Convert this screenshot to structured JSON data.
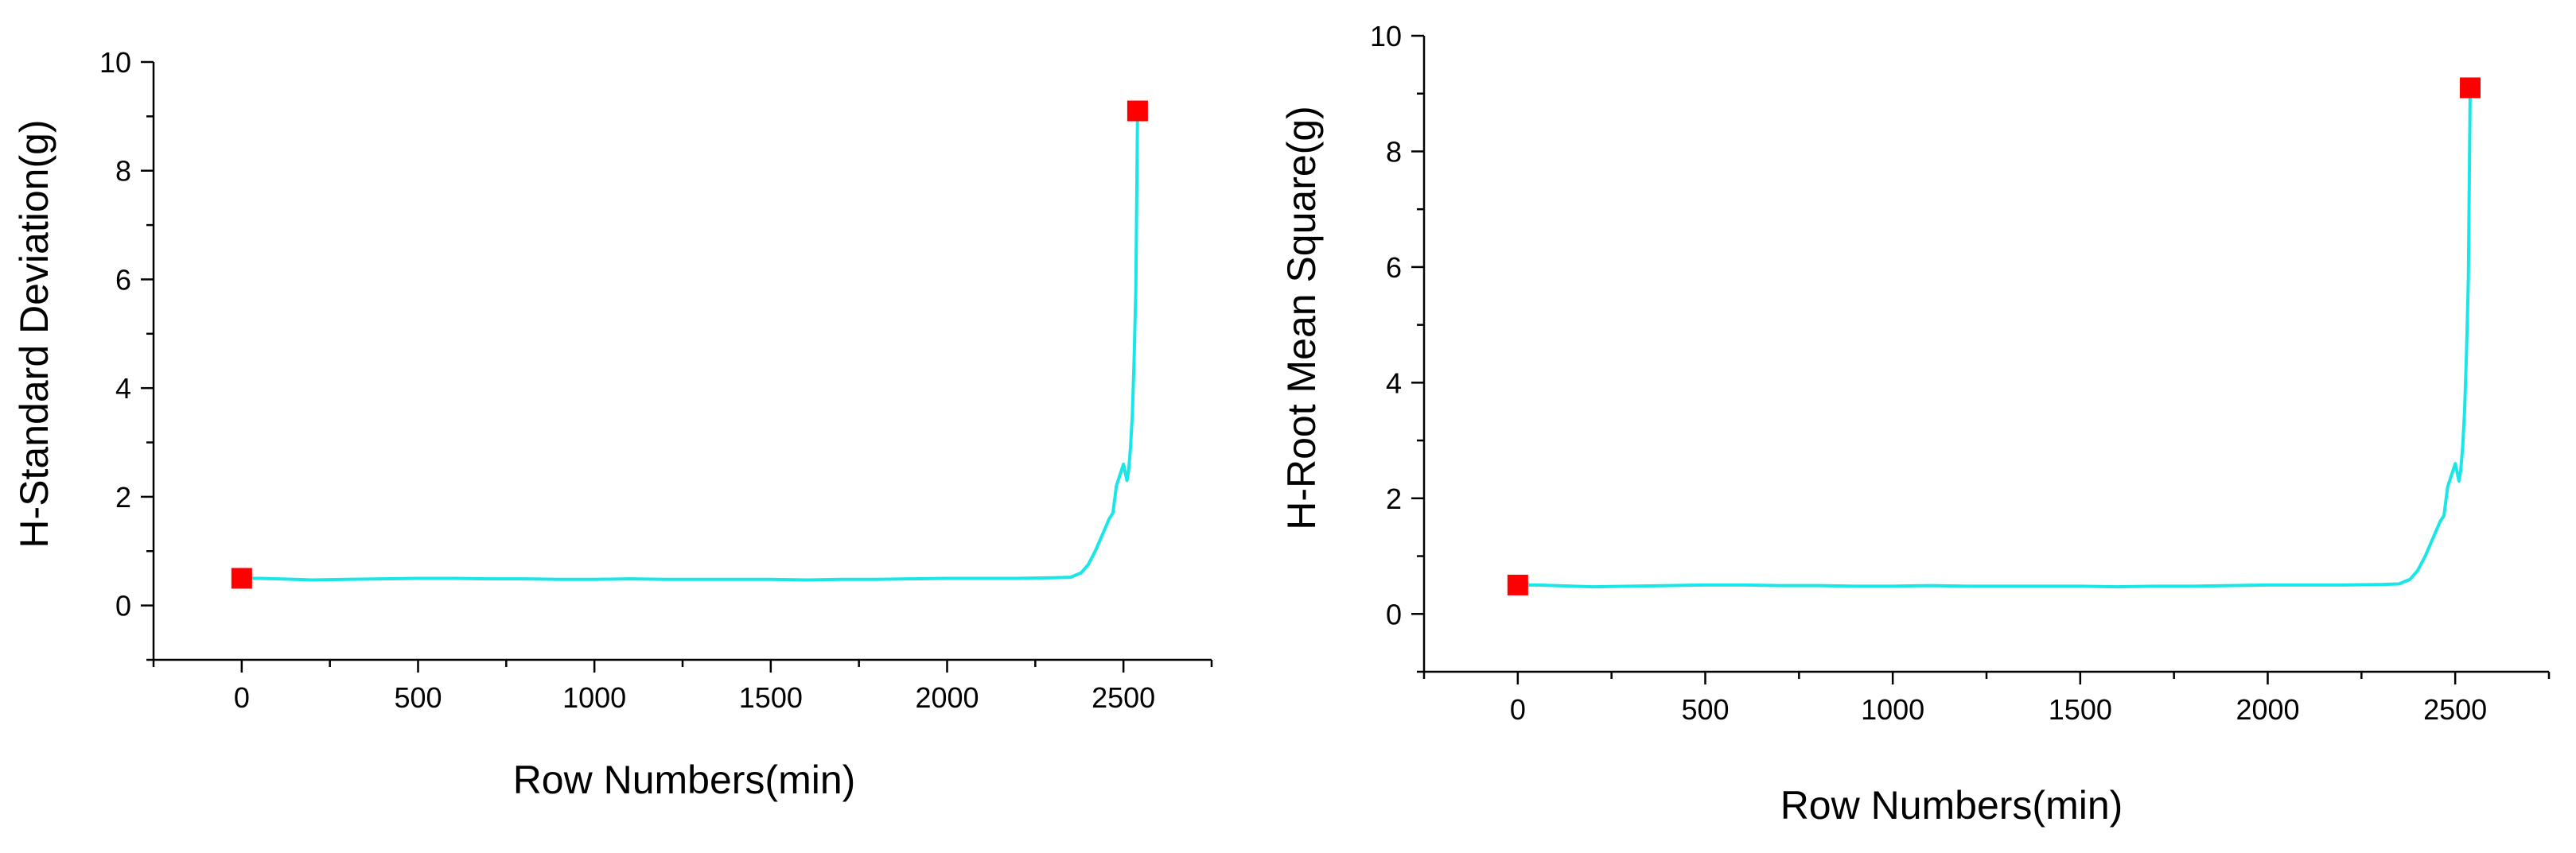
{
  "colors": {
    "series": "#19e6e6",
    "marker": "#ff0000",
    "axis": "#000000"
  },
  "chart_data": [
    {
      "type": "line",
      "xlabel": "Row Numbers(min)",
      "ylabel": "H-Standard Deviation(g)",
      "xlim": [
        -250,
        2750
      ],
      "ylim": [
        -1,
        10
      ],
      "xticks": [
        0,
        500,
        1000,
        1500,
        2000,
        2500
      ],
      "yticks": [
        0,
        2,
        4,
        6,
        8,
        10
      ],
      "grid": false,
      "series": [
        {
          "x": [
            0,
            50,
            100,
            150,
            200,
            300,
            400,
            500,
            600,
            700,
            800,
            900,
            1000,
            1100,
            1200,
            1300,
            1400,
            1500,
            1600,
            1700,
            1800,
            1900,
            2000,
            2100,
            2200,
            2300,
            2350,
            2380,
            2400,
            2420,
            2440,
            2460,
            2470,
            2480,
            2490,
            2500,
            2510,
            2515,
            2520,
            2525,
            2530,
            2535,
            2540
          ],
          "y": [
            0.5,
            0.5,
            0.49,
            0.48,
            0.47,
            0.48,
            0.49,
            0.5,
            0.5,
            0.49,
            0.49,
            0.48,
            0.48,
            0.49,
            0.48,
            0.48,
            0.48,
            0.48,
            0.47,
            0.48,
            0.48,
            0.49,
            0.5,
            0.5,
            0.5,
            0.51,
            0.52,
            0.6,
            0.75,
            1.0,
            1.3,
            1.6,
            1.7,
            2.2,
            2.4,
            2.6,
            2.3,
            2.5,
            2.9,
            3.5,
            4.5,
            5.8,
            9.1
          ]
        }
      ],
      "markers": [
        {
          "x": 0,
          "y": 0.5
        },
        {
          "x": 2540,
          "y": 9.1
        }
      ]
    },
    {
      "type": "line",
      "xlabel": "Row Numbers(min)",
      "ylabel": "H-Root Mean Square(g)",
      "xlim": [
        -250,
        2750
      ],
      "ylim": [
        -1,
        10
      ],
      "xticks": [
        0,
        500,
        1000,
        1500,
        2000,
        2500
      ],
      "yticks": [
        0,
        2,
        4,
        6,
        8,
        10
      ],
      "grid": false,
      "series": [
        {
          "x": [
            0,
            50,
            100,
            150,
            200,
            300,
            400,
            500,
            600,
            700,
            800,
            900,
            1000,
            1100,
            1200,
            1300,
            1400,
            1500,
            1600,
            1700,
            1800,
            1900,
            2000,
            2100,
            2200,
            2300,
            2350,
            2380,
            2400,
            2420,
            2440,
            2460,
            2470,
            2480,
            2490,
            2500,
            2510,
            2515,
            2520,
            2525,
            2530,
            2535,
            2540
          ],
          "y": [
            0.5,
            0.5,
            0.49,
            0.48,
            0.47,
            0.48,
            0.49,
            0.5,
            0.5,
            0.49,
            0.49,
            0.48,
            0.48,
            0.49,
            0.48,
            0.48,
            0.48,
            0.48,
            0.47,
            0.48,
            0.48,
            0.49,
            0.5,
            0.5,
            0.5,
            0.51,
            0.52,
            0.6,
            0.75,
            1.0,
            1.3,
            1.6,
            1.7,
            2.2,
            2.4,
            2.6,
            2.3,
            2.5,
            2.9,
            3.5,
            4.5,
            5.8,
            9.1
          ]
        }
      ],
      "markers": [
        {
          "x": 0,
          "y": 0.5
        },
        {
          "x": 2540,
          "y": 9.1
        }
      ]
    }
  ]
}
